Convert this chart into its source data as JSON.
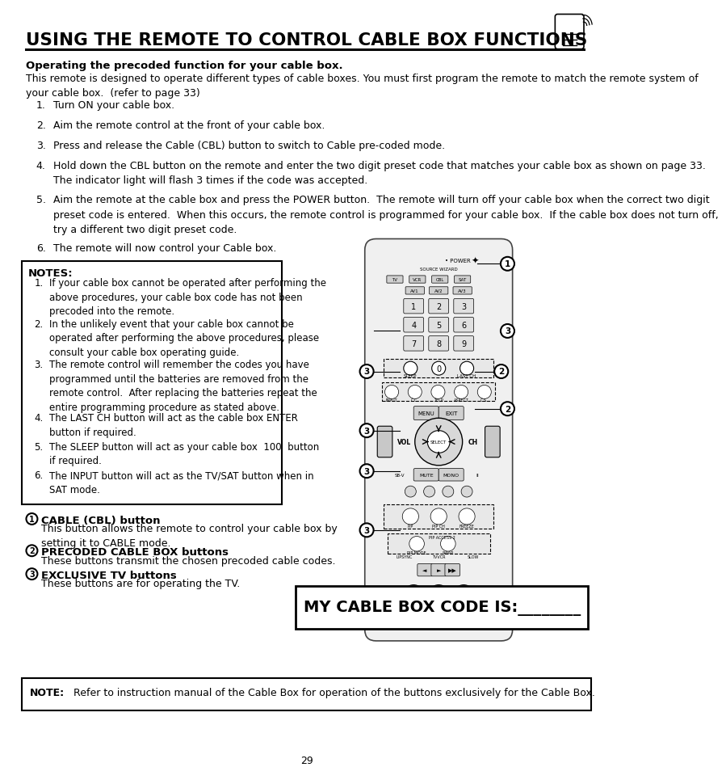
{
  "title": "USING THE REMOTE TO CONTROL CABLE BOX FUNCTIONS",
  "page_number": "29",
  "bg_color": "#ffffff",
  "text_color": "#000000",
  "subtitle": "Operating the precoded function for your cable box.",
  "intro_text": "This remote is designed to operate different types of cable boxes. You must first program the remote to match the remote system of your cable box.  (refer to page 33)",
  "steps": [
    {
      "num": "1.",
      "text": "Turn ON your cable box."
    },
    {
      "num": "2.",
      "text": "Aim the remote control at the front of your cable box."
    },
    {
      "num": "3.",
      "text": "Press and release the Cable (CBL) button to switch to Cable pre-coded mode."
    },
    {
      "num": "4.",
      "text": "Hold down the CBL button on the remote and enter the two digit preset code that matches your cable box as shown on page 33.\nThe indicator light will flash 3 times if the code was accepted."
    },
    {
      "num": "5.",
      "text": "Aim the remote at the cable box and press the POWER button.  The remote will turn off your cable box when the correct two digit\npreset code is entered.  When this occurs, the remote control is programmed for your cable box.  If the cable box does not turn off,\ntry a different two digit preset code."
    },
    {
      "num": "6.",
      "text": "The remote will now control your Cable box."
    }
  ],
  "notes_title": "NOTES:",
  "notes": [
    "If your cable box cannot be operated after performing the\nabove procedures, your cable box code has not been\nprecoded into the remote.",
    "In the unlikely event that your cable box cannot be\noperated after performing the above procedures, please\nconsult your cable box operating guide.",
    "The remote control will remember the codes you have\nprogrammed until the batteries are removed from the\nremote control.  After replacing the batteries repeat the\nentire programming procedure as stated above.",
    "The LAST CH button will act as the cable box ENTER\nbutton if required.",
    "The SLEEP button will act as your cable box  100  button\nif required.",
    "The INPUT button will act as the TV/SAT button when in\nSAT mode."
  ],
  "legend": [
    {
      "num": "1",
      "title": "CABLE (CBL) button",
      "desc": "This button allows the remote to control your cable box by\nsetting it to CABLE mode."
    },
    {
      "num": "2",
      "title": "PRECODED CABLE BOX buttons",
      "desc": "These buttons transmit the chosen precoded cable codes."
    },
    {
      "num": "3",
      "title": "EXCLUSIVE TV buttons",
      "desc": "These buttons are for operating the TV."
    }
  ],
  "cable_box_label": "MY CABLE BOX CODE IS:________",
  "footer_note": "NOTE:",
  "footer_text": "Refer to instruction manual of the Cable Box for operation of the buttons exclusively for the Cable Box."
}
